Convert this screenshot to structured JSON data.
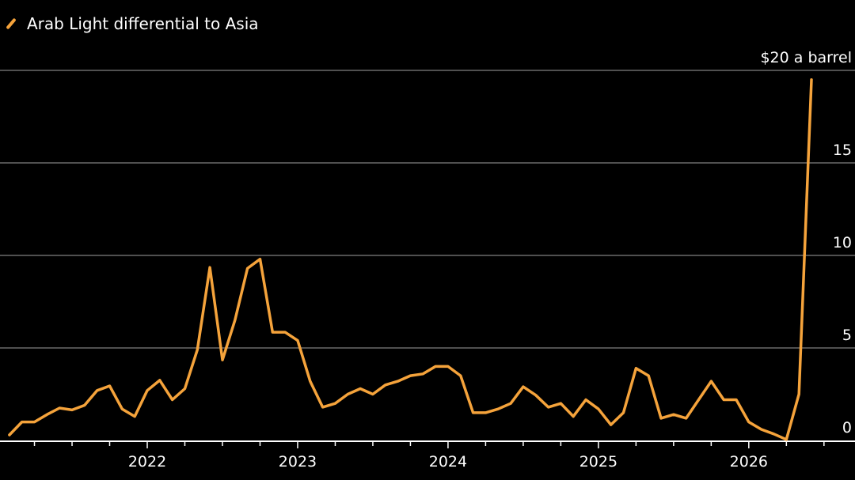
{
  "chart_data": {
    "type": "line",
    "title": "",
    "legend": [
      {
        "label": "Arab Light differential to Asia",
        "color": "#f5a33b"
      }
    ],
    "legend_placement": "top-left",
    "ylabel": "$20 a barrel",
    "ylim": [
      0,
      20
    ],
    "yticks": [
      0,
      5,
      10,
      15,
      20
    ],
    "ytick_labels": [
      "0",
      "5",
      "10",
      "15",
      "$20 a barrel"
    ],
    "xticks": [
      "2022",
      "2023",
      "2024",
      "2025",
      "2026"
    ],
    "x_start": "2021-02",
    "x_frequency": "monthly",
    "grid": true,
    "series": [
      {
        "name": "Arab Light differential to Asia",
        "color": "#f5a33b",
        "values": [
          0.3,
          1.0,
          1.0,
          1.4,
          1.75,
          1.65,
          1.9,
          2.7,
          2.95,
          1.7,
          1.3,
          2.7,
          3.25,
          2.2,
          2.8,
          4.9,
          9.35,
          4.35,
          6.5,
          9.3,
          9.8,
          5.85,
          5.85,
          5.4,
          3.2,
          1.8,
          2.0,
          2.5,
          2.8,
          2.5,
          3.0,
          3.2,
          3.5,
          3.6,
          4.0,
          4.0,
          3.5,
          1.5,
          1.5,
          1.7,
          2.0,
          2.9,
          2.45,
          1.8,
          2.0,
          1.3,
          2.2,
          1.7,
          0.85,
          1.5,
          3.9,
          3.5,
          1.2,
          1.4,
          1.2,
          2.2,
          3.2,
          2.2,
          2.2,
          1.0,
          0.6,
          0.35,
          0.05,
          2.5,
          19.5
        ]
      }
    ]
  }
}
